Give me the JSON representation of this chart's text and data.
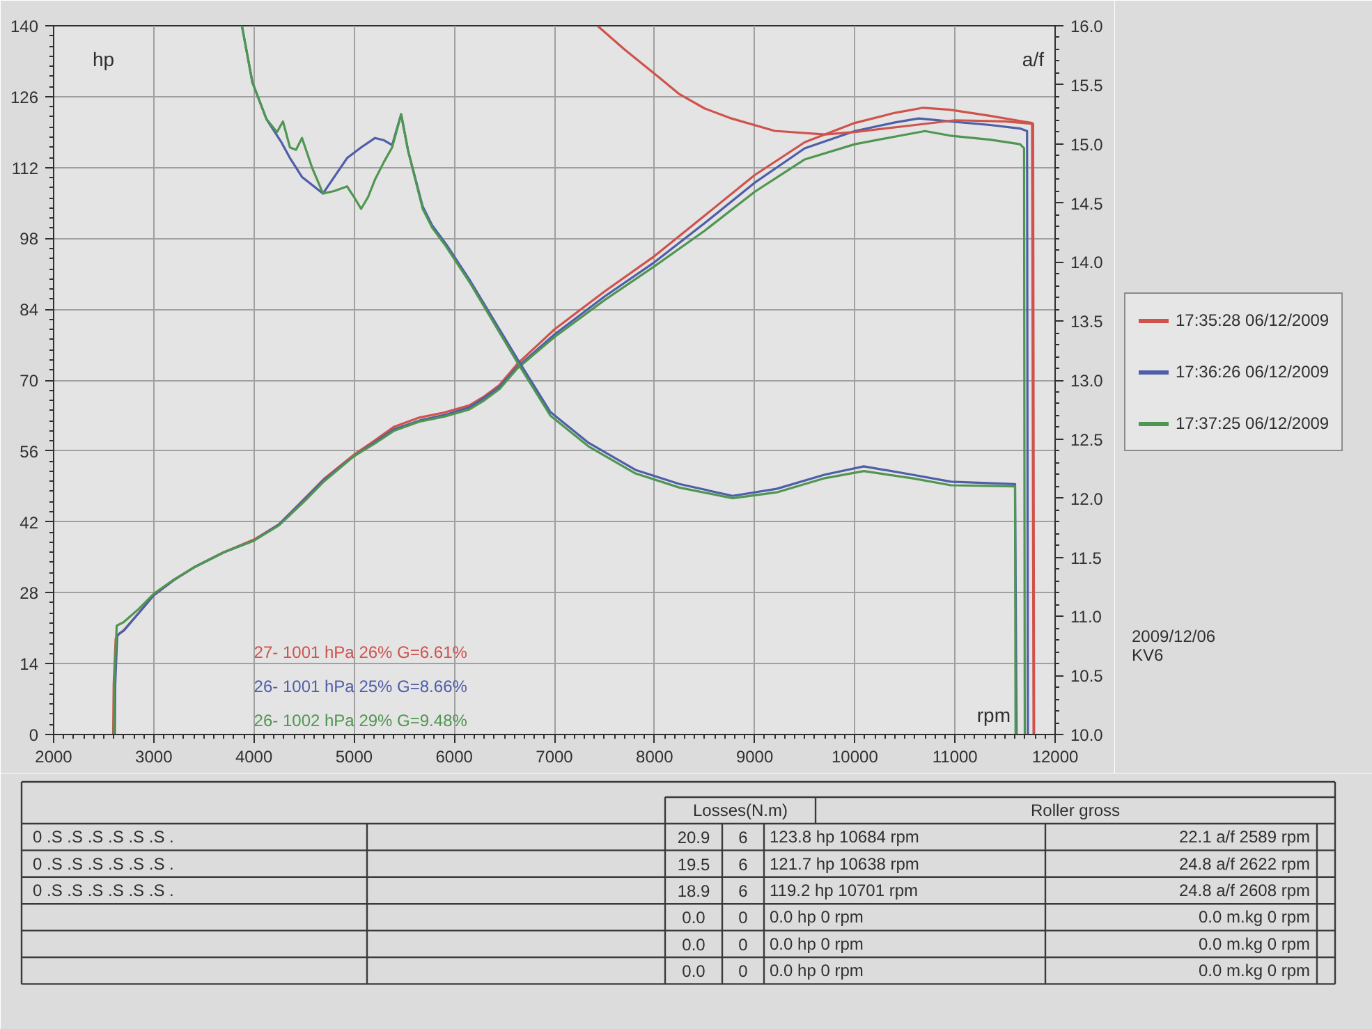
{
  "chart_data": {
    "type": "line",
    "xlabel": "rpm",
    "ylabel": "hp",
    "y2label": "a/f",
    "xlim": [
      2000,
      12000
    ],
    "xticks": [
      2000,
      3000,
      4000,
      5000,
      6000,
      7000,
      8000,
      9000,
      10000,
      11000,
      12000
    ],
    "ylim": [
      0,
      140
    ],
    "yticks": [
      0,
      14,
      28,
      42,
      56,
      70,
      84,
      98,
      112,
      126,
      140
    ],
    "y2lim": [
      10,
      16
    ],
    "y2ticks": [
      {
        "value": 10,
        "label": "10.0"
      },
      10.5,
      {
        "value": 11,
        "label": "11.0"
      },
      11.5,
      {
        "value": 12,
        "label": "12.0"
      },
      12.5,
      {
        "value": 13,
        "label": "13.0"
      },
      13.5,
      {
        "value": 14,
        "label": "14.0"
      },
      14.5,
      {
        "value": 15,
        "label": "15.0"
      },
      15.5,
      {
        "value": 16,
        "label": "16.0"
      }
    ],
    "grid": true,
    "legend": "right",
    "series": [
      {
        "name": "17:35:28 06/12/2009",
        "color": "#d0524c",
        "x": [
          2595,
          2600,
          2620,
          2650,
          2700,
          2850,
          3000,
          3200,
          3400,
          3700,
          4000,
          4250,
          4500,
          4700,
          5000,
          5200,
          5400,
          5650,
          5900,
          6150,
          6300,
          6450,
          6630,
          7000,
          7500,
          8000,
          8500,
          9000,
          9500,
          10000,
          10400,
          10684,
          10950,
          11350,
          11650,
          11770,
          11785
        ],
        "values": [
          0,
          10,
          19,
          19.8,
          20.6,
          24,
          27.5,
          30.5,
          33,
          36,
          38.5,
          41.5,
          46.5,
          50.5,
          55.3,
          58,
          60.8,
          62.6,
          63.6,
          65,
          66.8,
          69,
          73.2,
          80,
          87.5,
          94.5,
          102.5,
          110.5,
          117,
          120.8,
          122.8,
          123.8,
          123.4,
          122.2,
          121.2,
          120.8,
          0
        ]
      },
      {
        "name": "17:36:26 06/12/2009",
        "color": "#4e5ea8",
        "x": [
          2610,
          2615,
          2635,
          2660,
          2700,
          2850,
          3000,
          3200,
          3400,
          3700,
          4000,
          4250,
          4500,
          4700,
          5000,
          5200,
          5400,
          5650,
          5900,
          6150,
          6300,
          6450,
          6630,
          7000,
          7500,
          8000,
          8500,
          9000,
          9500,
          10000,
          10400,
          10638,
          10950,
          11350,
          11650,
          11720,
          11728
        ],
        "values": [
          0,
          10,
          19.5,
          20,
          20.5,
          24,
          27.5,
          30.5,
          33,
          36,
          38.3,
          41.5,
          46.3,
          50.3,
          55,
          57.6,
          60.3,
          62,
          63.1,
          64.6,
          66.5,
          68.6,
          72.6,
          79,
          86.5,
          93.3,
          101,
          109,
          115.8,
          119.2,
          120.9,
          121.7,
          121.1,
          120.4,
          119.7,
          119.2,
          0
        ]
      },
      {
        "name": "17:37:25 06/12/2009",
        "color": "#4f9650",
        "x": [
          2600,
          2605,
          2630,
          2660,
          2700,
          2850,
          3000,
          3200,
          3400,
          3700,
          4000,
          4250,
          4500,
          4700,
          5000,
          5200,
          5400,
          5650,
          5900,
          6150,
          6300,
          6450,
          6630,
          7000,
          7500,
          8000,
          8500,
          9000,
          9500,
          10000,
          10400,
          10701,
          10950,
          11350,
          11650,
          11690,
          11697
        ],
        "values": [
          0,
          10,
          21.5,
          21.8,
          22.2,
          24.8,
          27.8,
          30.6,
          33,
          36,
          38.3,
          41.3,
          46,
          50,
          55,
          57.4,
          60,
          61.8,
          62.8,
          64.2,
          66,
          68.2,
          72.3,
          78.5,
          85.8,
          92.5,
          99.5,
          107.2,
          113.6,
          116.6,
          118.1,
          119.2,
          118.3,
          117.5,
          116.6,
          115.8,
          0
        ]
      },
      {
        "color": "#d0524c",
        "axis": "y2",
        "x": [
          7430,
          7700,
          8050,
          8250,
          8500,
          8750,
          9200,
          9700,
          10000,
          10500,
          11000,
          11500,
          11780,
          11790
        ],
        "values": [
          16,
          15.8,
          15.56,
          15.42,
          15.3,
          15.22,
          15.11,
          15.08,
          15.1,
          15.15,
          15.2,
          15.19,
          15.17,
          10
        ]
      },
      {
        "color": "#4e5ea8",
        "axis": "y2",
        "x": [
          3880,
          3985,
          4125,
          4270,
          4360,
          4480,
          4690,
          4930,
          5070,
          5210,
          5300,
          5380,
          5470,
          5540,
          5685,
          5780,
          5920,
          6160,
          6630,
          6960,
          7340,
          7810,
          8250,
          8780,
          9220,
          9700,
          10090,
          10570,
          10960,
          11600,
          11615
        ],
        "values": [
          16,
          15.52,
          15.21,
          15.02,
          14.88,
          14.72,
          14.58,
          14.88,
          14.97,
          15.05,
          15.03,
          14.99,
          15.25,
          14.94,
          14.47,
          14.31,
          14.15,
          13.84,
          13.18,
          12.73,
          12.47,
          12.24,
          12.12,
          12.02,
          12.08,
          12.2,
          12.27,
          12.2,
          12.14,
          12.12,
          10
        ]
      },
      {
        "color": "#4f9650",
        "axis": "y2",
        "x": [
          3880,
          3985,
          4125,
          4230,
          4290,
          4360,
          4420,
          4480,
          4580,
          4690,
          4800,
          4930,
          5000,
          5070,
          5140,
          5210,
          5300,
          5380,
          5470,
          5540,
          5685,
          5780,
          5920,
          6160,
          6630,
          6960,
          7340,
          7810,
          8250,
          8780,
          9220,
          9700,
          10090,
          10570,
          10960,
          11600,
          11605
        ],
        "values": [
          16,
          15.52,
          15.21,
          15.1,
          15.19,
          14.97,
          14.95,
          15.05,
          14.8,
          14.58,
          14.6,
          14.64,
          14.55,
          14.45,
          14.55,
          14.7,
          14.85,
          14.97,
          15.25,
          14.94,
          14.45,
          14.29,
          14.13,
          13.82,
          13.15,
          12.7,
          12.44,
          12.21,
          12.09,
          12.0,
          12.05,
          12.17,
          12.23,
          12.17,
          12.11,
          12.1,
          10
        ]
      }
    ],
    "annotations": [
      "27- 1001 hPa 26% G=6.61%",
      "26- 1001 hPa 25% G=8.66%",
      "26- 1002 hPa 29% G=9.48%",
      "2009/12/06",
      "KV6",
      "Losses(N.m)",
      "Roller gross",
      "0 .S .S .S .S .S .S .",
      "0 .S .S .S .S .S .S .",
      "0 .S .S .S .S .S .S .",
      "20.9",
      "19.5",
      "18.9",
      "0.0",
      "0.0",
      "0.0",
      "6",
      "6",
      "6",
      "0",
      "0",
      "0",
      "123.8 hp 10684 rpm",
      "121.7 hp 10638 rpm",
      "119.2 hp 10701 rpm",
      "0.0 hp 0 rpm",
      "0.0 hp 0 rpm",
      "0.0 hp 0 rpm",
      "22.1 a/f 2589 rpm",
      "24.8 a/f 2622 rpm",
      "24.8 a/f 2608 rpm",
      "0.0 m.kg 0 rpm",
      "0.0 m.kg 0 rpm",
      "0.0 m.kg 0 rpm"
    ]
  }
}
